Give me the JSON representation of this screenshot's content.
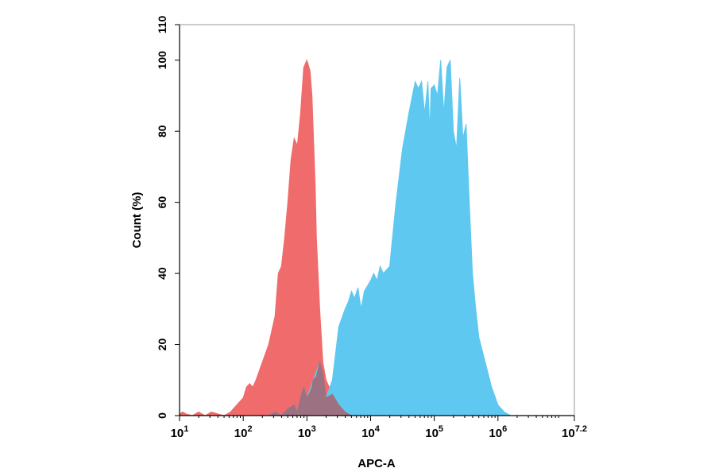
{
  "chart_data": {
    "type": "area",
    "xlabel": "APC-A",
    "ylabel": "Count (%)",
    "x_scale": "log10",
    "xlim": [
      1,
      7.2
    ],
    "ylim": [
      0,
      110
    ],
    "x_ticks": [
      {
        "base": "10",
        "exp": "1",
        "value": 1
      },
      {
        "base": "10",
        "exp": "2",
        "value": 2
      },
      {
        "base": "10",
        "exp": "3",
        "value": 3
      },
      {
        "base": "10",
        "exp": "4",
        "value": 4
      },
      {
        "base": "10",
        "exp": "5",
        "value": 5
      },
      {
        "base": "10",
        "exp": "6",
        "value": 6
      },
      {
        "base": "10",
        "exp": "7.2",
        "value": 7.2
      }
    ],
    "y_ticks": [
      "0",
      "20",
      "40",
      "60",
      "80",
      "100",
      "110"
    ],
    "grid": false,
    "legend": "none",
    "series": [
      {
        "color": "#f06b6b",
        "x": [
          1.0,
          1.05,
          1.1,
          1.2,
          1.3,
          1.4,
          1.5,
          1.6,
          1.7,
          1.8,
          1.9,
          2.0,
          2.05,
          2.1,
          2.15,
          2.2,
          2.3,
          2.4,
          2.5,
          2.55,
          2.6,
          2.65,
          2.7,
          2.75,
          2.8,
          2.85,
          2.9,
          2.95,
          3.0,
          3.05,
          3.08,
          3.1,
          3.13,
          3.15,
          3.2,
          3.25,
          3.3,
          3.4,
          3.5,
          3.6,
          3.7
        ],
        "y": [
          0.5,
          1,
          0.5,
          0,
          1,
          0,
          1,
          0.5,
          0,
          1,
          3,
          5,
          8,
          9,
          8,
          10,
          15,
          20,
          28,
          40,
          42,
          50,
          60,
          72,
          78,
          76,
          85,
          98,
          100,
          97,
          90,
          80,
          65,
          50,
          30,
          15,
          10,
          6,
          3,
          1,
          0
        ]
      },
      {
        "color": "#5ec8f0",
        "x": [
          2.4,
          2.5,
          2.6,
          2.7,
          2.8,
          2.85,
          2.9,
          2.95,
          3.0,
          3.1,
          3.2,
          3.3,
          3.4,
          3.5,
          3.6,
          3.65,
          3.7,
          3.75,
          3.8,
          3.85,
          3.9,
          4.0,
          4.05,
          4.1,
          4.15,
          4.2,
          4.3,
          4.4,
          4.5,
          4.6,
          4.7,
          4.75,
          4.8,
          4.85,
          4.9,
          4.93,
          4.95,
          5.0,
          5.05,
          5.1,
          5.15,
          5.2,
          5.25,
          5.3,
          5.35,
          5.4,
          5.45,
          5.5,
          5.55,
          5.6,
          5.65,
          5.7,
          5.8,
          5.9,
          6.0,
          6.05,
          6.1,
          6.15,
          6.2
        ],
        "y": [
          0,
          1,
          0,
          2,
          3,
          1,
          5,
          8,
          5,
          10,
          15,
          5,
          10,
          25,
          30,
          32,
          35,
          33,
          36,
          30,
          35,
          38,
          40,
          38,
          42,
          40,
          42,
          60,
          75,
          85,
          94,
          92,
          94,
          85,
          94,
          80,
          92,
          93,
          90,
          100,
          85,
          98,
          100,
          80,
          75,
          95,
          78,
          82,
          60,
          40,
          30,
          22,
          15,
          8,
          3,
          2,
          1,
          0.5,
          0
        ]
      },
      {
        "color": "#9c7282",
        "x": [
          2.4,
          2.5,
          2.6,
          2.7,
          2.8,
          2.85,
          2.9,
          2.95,
          3.0,
          3.05,
          3.08,
          3.1,
          3.13,
          3.15,
          3.2,
          3.25,
          3.3,
          3.4,
          3.5,
          3.6,
          3.7
        ],
        "y": [
          0,
          1,
          0,
          2,
          3,
          1,
          5,
          8,
          5,
          6.6,
          8,
          10,
          10.6,
          11,
          15,
          12,
          5,
          6,
          3,
          1,
          0
        ]
      }
    ]
  }
}
